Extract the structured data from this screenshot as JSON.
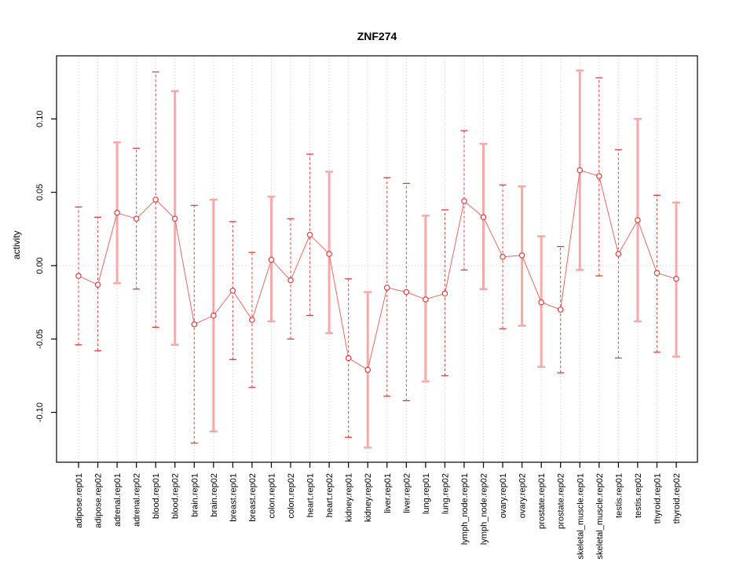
{
  "chart_data": {
    "type": "line",
    "title": "ZNF274",
    "xlabel": "",
    "ylabel": "activity",
    "ylim": [
      -0.134,
      0.143
    ],
    "yticks": [
      -0.1,
      -0.05,
      0.0,
      0.05,
      0.1
    ],
    "ytick_labels": [
      "-0.10",
      "-0.05",
      "0.00",
      "0.05",
      "0.10"
    ],
    "grid": {
      "vertical_dotted": true,
      "zero_line_dotted": true
    },
    "legend": null,
    "categories": [
      "adipose.rep01",
      "adipose.rep02",
      "adrenal.rep01",
      "adrenal.rep02",
      "blood.rep01",
      "blood.rep02",
      "brain.rep01",
      "brain.rep02",
      "breast.rep01",
      "breast.rep02",
      "colon.rep01",
      "colon.rep02",
      "heart.rep01",
      "heart.rep02",
      "kidney.rep01",
      "kidney.rep02",
      "liver.rep01",
      "liver.rep02",
      "lung.rep01",
      "lung.rep02",
      "lymph_node.rep01",
      "lymph_node.rep02",
      "ovary.rep01",
      "ovary.rep02",
      "prostate.rep01",
      "prostate.rep02",
      "skeletal_muscle.rep01",
      "skeletal_muscle.rep02",
      "testis.rep01",
      "testis.rep02",
      "thyroid.rep01",
      "thyroid.rep02"
    ],
    "series": [
      {
        "name": "activity",
        "values": [
          -0.007,
          -0.013,
          0.036,
          0.032,
          0.045,
          0.032,
          -0.04,
          -0.034,
          -0.017,
          -0.037,
          0.004,
          -0.01,
          0.021,
          0.008,
          -0.063,
          -0.071,
          -0.015,
          -0.018,
          -0.023,
          -0.019,
          0.044,
          0.033,
          0.006,
          0.007,
          -0.025,
          -0.03,
          0.065,
          0.061,
          0.008,
          0.031,
          -0.005,
          -0.009
        ],
        "ci_low": [
          -0.054,
          -0.058,
          -0.012,
          -0.016,
          -0.042,
          -0.054,
          -0.121,
          -0.113,
          -0.064,
          -0.083,
          -0.038,
          -0.05,
          -0.034,
          -0.046,
          -0.117,
          -0.124,
          -0.089,
          -0.092,
          -0.079,
          -0.075,
          -0.003,
          -0.016,
          -0.043,
          -0.041,
          -0.069,
          -0.073,
          -0.003,
          -0.007,
          -0.063,
          -0.038,
          -0.059,
          -0.062
        ],
        "ci_high": [
          0.04,
          0.033,
          0.084,
          0.08,
          0.132,
          0.119,
          0.041,
          0.045,
          0.03,
          0.009,
          0.047,
          0.032,
          0.076,
          0.064,
          -0.009,
          -0.018,
          0.06,
          0.056,
          0.034,
          0.038,
          0.092,
          0.083,
          0.055,
          0.054,
          0.02,
          0.013,
          0.133,
          0.128,
          0.079,
          0.1,
          0.048,
          0.043
        ],
        "bar_styles": [
          "dashed",
          "dashed",
          "solid",
          "dashed",
          "dashed",
          "solid",
          "dashed",
          "solid",
          "dashed",
          "dashed",
          "solid",
          "dashed",
          "dashed",
          "solid",
          "dashed",
          "solid",
          "dashed",
          "dashed",
          "solid",
          "dashed",
          "dashed",
          "solid",
          "dashed",
          "solid",
          "solid",
          "dashed",
          "solid",
          "dashed",
          "dashed",
          "solid",
          "dashed",
          "solid"
        ]
      }
    ],
    "colors": {
      "error_bar_dashed": "#e23d3d",
      "error_bar_solid": "#f7a8a8",
      "series_line": "#ee6666",
      "point_stroke": "#e23d3d",
      "point_fill": "#ffffff",
      "gridline": "#c9c9c9",
      "zero_line": "#cccccc",
      "axis": "#000000",
      "background": "#ffffff"
    }
  }
}
